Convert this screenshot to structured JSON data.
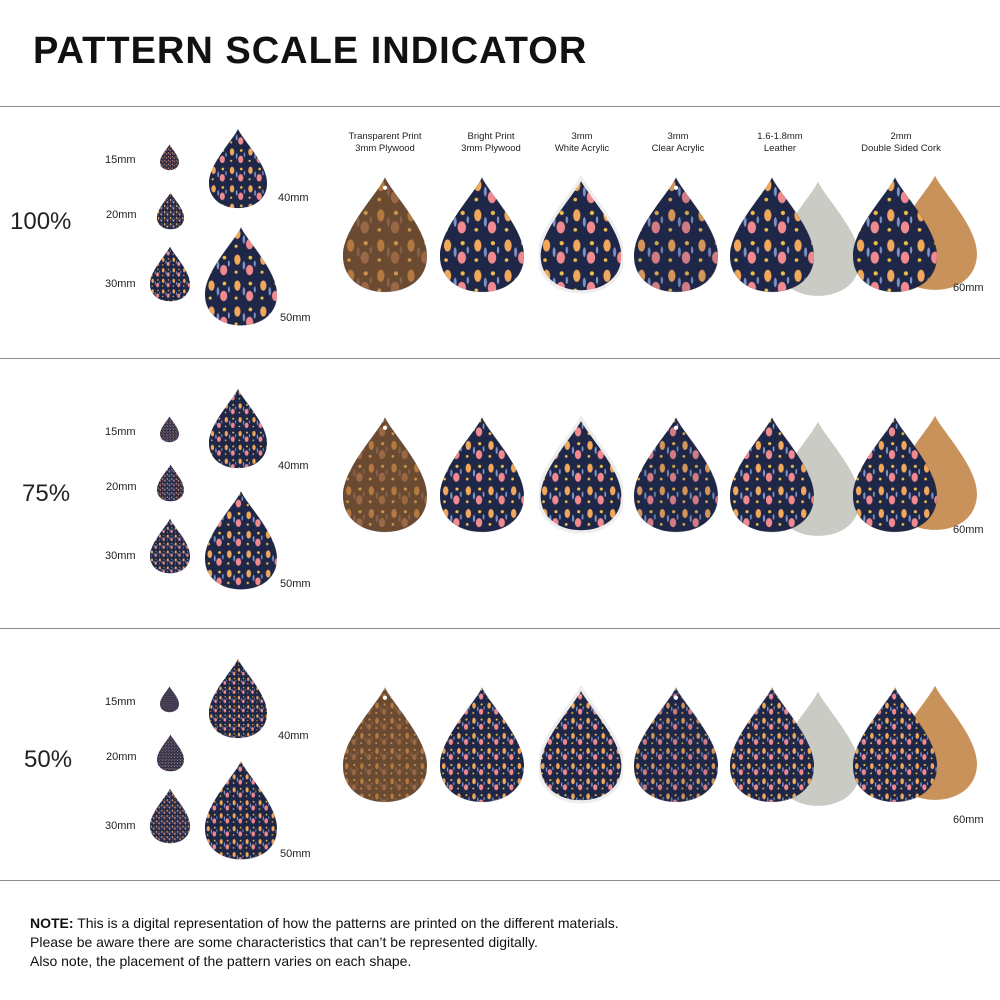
{
  "title": "PATTERN SCALE INDICATOR",
  "sizes": [
    "15mm",
    "20mm",
    "30mm",
    "40mm",
    "50mm"
  ],
  "large_size": "60mm",
  "materials": [
    {
      "line1": "Transparent Print",
      "line2": "3mm Plywood",
      "type": "plywood"
    },
    {
      "line1": "Bright Print",
      "line2": "3mm Plywood",
      "type": "bright"
    },
    {
      "line1": "3mm",
      "line2": "White Acrylic",
      "type": "white"
    },
    {
      "line1": "3mm",
      "line2": "Clear Acrylic",
      "type": "clear"
    },
    {
      "line1": "1.6-1.8mm",
      "line2": "Leather",
      "type": "leather"
    },
    {
      "line1": "2mm",
      "line2": "Double Sided Cork",
      "type": "cork"
    }
  ],
  "sections": [
    {
      "scale": "100%"
    },
    {
      "scale": "75%"
    },
    {
      "scale": "50%"
    }
  ],
  "colors": {
    "navy": "#1f2748",
    "orange": "#f2a85a",
    "pink": "#f08a8f",
    "yellow": "#f2c04a",
    "blue": "#7f93c8",
    "wood": "#6b4a32",
    "suede": "#c9cbc4",
    "cork": "#c8925a"
  },
  "note": {
    "label": "NOTE:",
    "line1": " This is a digital representation of how the patterns are printed on the different materials.",
    "line2": "Please be aware there are some characteristics that can’t be represented digitally.",
    "line3": "Also note, the placement of the pattern varies on each shape."
  }
}
